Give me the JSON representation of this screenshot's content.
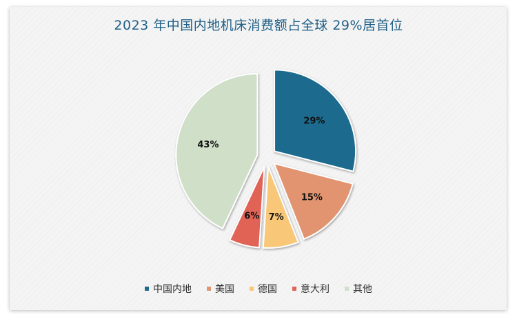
{
  "chart_data": {
    "type": "pie",
    "title": "2023 年中国内地机床消费额占全球 29%居首位",
    "categories": [
      "中国内地",
      "美国",
      "德国",
      "意大利",
      "其他"
    ],
    "values": [
      29,
      15,
      7,
      6,
      43
    ],
    "labels": [
      "29%",
      "15%",
      "7%",
      "6%",
      "43%"
    ],
    "colors": [
      "#1c6a8e",
      "#e2946f",
      "#f8c778",
      "#e06457",
      "#cfdfc8"
    ],
    "legend_position": "bottom"
  }
}
